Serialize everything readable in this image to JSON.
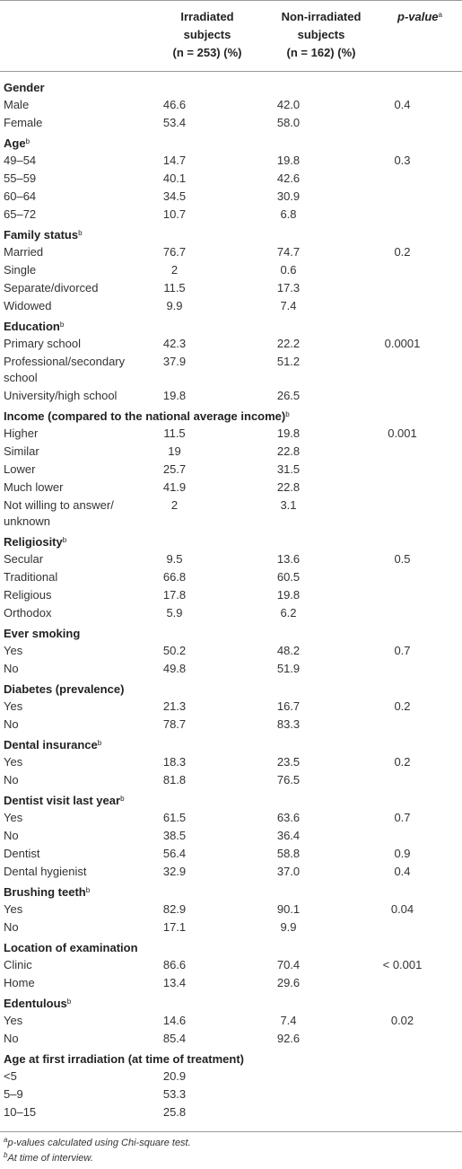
{
  "header": {
    "col1": [
      "Irradiated",
      "subjects",
      "(n = 253) (%)"
    ],
    "col2": [
      "Non-irradiated",
      "subjects",
      "(n = 162) (%)"
    ],
    "col3": "p-value",
    "col3_sup": "a"
  },
  "sections": [
    {
      "title": "Gender",
      "sup": "",
      "rows": [
        {
          "label": "Male",
          "irr": "46.6",
          "non": "42.0",
          "p": "0.4"
        },
        {
          "label": "Female",
          "irr": "53.4",
          "non": "58.0",
          "p": ""
        }
      ]
    },
    {
      "title": "Age",
      "sup": "b",
      "rows": [
        {
          "label": "49–54",
          "irr": "14.7",
          "non": "19.8",
          "p": "0.3"
        },
        {
          "label": "55–59",
          "irr": "40.1",
          "non": "42.6",
          "p": ""
        },
        {
          "label": "60–64",
          "irr": "34.5",
          "non": "30.9",
          "p": ""
        },
        {
          "label": "65–72",
          "irr": "10.7",
          "non": "6.8",
          "p": ""
        }
      ]
    },
    {
      "title": "Family status",
      "sup": "b",
      "rows": [
        {
          "label": "Married",
          "irr": "76.7",
          "non": "74.7",
          "p": "0.2"
        },
        {
          "label": "Single",
          "irr": "2",
          "non": "0.6",
          "p": ""
        },
        {
          "label": "Separate/divorced",
          "irr": "11.5",
          "non": "17.3",
          "p": ""
        },
        {
          "label": "Widowed",
          "irr": "9.9",
          "non": "7.4",
          "p": ""
        }
      ]
    },
    {
      "title": "Education",
      "sup": "b",
      "rows": [
        {
          "label": "Primary school",
          "irr": "42.3",
          "non": "22.2",
          "p": "0.0001"
        },
        {
          "label": "Professional/secondary school",
          "irr": "37.9",
          "non": "51.2",
          "p": ""
        },
        {
          "label": "University/high school",
          "irr": "19.8",
          "non": "26.5",
          "p": ""
        }
      ]
    },
    {
      "title": "Income (compared to the national average income)",
      "sup": "b",
      "rows": [
        {
          "label": "Higher",
          "irr": "11.5",
          "non": "19.8",
          "p": "0.001"
        },
        {
          "label": "Similar",
          "irr": "19",
          "non": "22.8",
          "p": ""
        },
        {
          "label": "Lower",
          "irr": "25.7",
          "non": "31.5",
          "p": ""
        },
        {
          "label": "Much lower",
          "irr": "41.9",
          "non": "22.8",
          "p": ""
        },
        {
          "label": "Not willing to answer/ unknown",
          "irr": "2",
          "non": "3.1",
          "p": ""
        }
      ]
    },
    {
      "title": "Religiosity",
      "sup": "b",
      "rows": [
        {
          "label": "Secular",
          "irr": "9.5",
          "non": "13.6",
          "p": "0.5"
        },
        {
          "label": "Traditional",
          "irr": "66.8",
          "non": "60.5",
          "p": ""
        },
        {
          "label": "Religious",
          "irr": "17.8",
          "non": "19.8",
          "p": ""
        },
        {
          "label": "Orthodox",
          "irr": "5.9",
          "non": "6.2",
          "p": ""
        }
      ]
    },
    {
      "title": "Ever smoking",
      "sup": "",
      "rows": [
        {
          "label": "Yes",
          "irr": "50.2",
          "non": "48.2",
          "p": "0.7"
        },
        {
          "label": "No",
          "irr": "49.8",
          "non": "51.9",
          "p": ""
        }
      ]
    },
    {
      "title": "Diabetes (prevalence)",
      "sup": "",
      "rows": [
        {
          "label": "Yes",
          "irr": "21.3",
          "non": "16.7",
          "p": "0.2"
        },
        {
          "label": "No",
          "irr": "78.7",
          "non": "83.3",
          "p": ""
        }
      ]
    },
    {
      "title": "Dental insurance",
      "sup": "b",
      "rows": [
        {
          "label": "Yes",
          "irr": "18.3",
          "non": "23.5",
          "p": "0.2"
        },
        {
          "label": "No",
          "irr": "81.8",
          "non": "76.5",
          "p": ""
        }
      ]
    },
    {
      "title": "Dentist visit last year",
      "sup": "b",
      "rows": [
        {
          "label": "Yes",
          "irr": "61.5",
          "non": "63.6",
          "p": "0.7"
        },
        {
          "label": "No",
          "irr": "38.5",
          "non": "36.4",
          "p": ""
        },
        {
          "label": "Dentist",
          "irr": "56.4",
          "non": "58.8",
          "p": "0.9"
        },
        {
          "label": "Dental hygienist",
          "irr": "32.9",
          "non": "37.0",
          "p": "0.4"
        }
      ]
    },
    {
      "title": "Brushing teeth",
      "sup": "b",
      "rows": [
        {
          "label": "Yes",
          "irr": "82.9",
          "non": "90.1",
          "p": "0.04"
        },
        {
          "label": "No",
          "irr": "17.1",
          "non": "9.9",
          "p": ""
        }
      ]
    },
    {
      "title": "Location of examination",
      "sup": "",
      "rows": [
        {
          "label": "Clinic",
          "irr": "86.6",
          "non": "70.4",
          "p": "< 0.001"
        },
        {
          "label": "Home",
          "irr": "13.4",
          "non": "29.6",
          "p": ""
        }
      ]
    },
    {
      "title": "Edentulous",
      "sup": "b",
      "rows": [
        {
          "label": "Yes",
          "irr": "14.6",
          "non": "7.4",
          "p": "0.02"
        },
        {
          "label": "No",
          "irr": "85.4",
          "non": "92.6",
          "p": ""
        }
      ]
    },
    {
      "title": "Age at first irradiation (at time of treatment)",
      "sup": "",
      "rows": [
        {
          "label": "<5",
          "irr": "20.9",
          "non": "",
          "p": ""
        },
        {
          "label": "5–9",
          "irr": "53.3",
          "non": "",
          "p": ""
        },
        {
          "label": "10–15",
          "irr": "25.8",
          "non": "",
          "p": ""
        }
      ]
    }
  ],
  "footnotes": [
    {
      "mark": "a",
      "text": "p-values calculated using Chi-square test."
    },
    {
      "mark": "b",
      "text": "At time of interview."
    }
  ]
}
